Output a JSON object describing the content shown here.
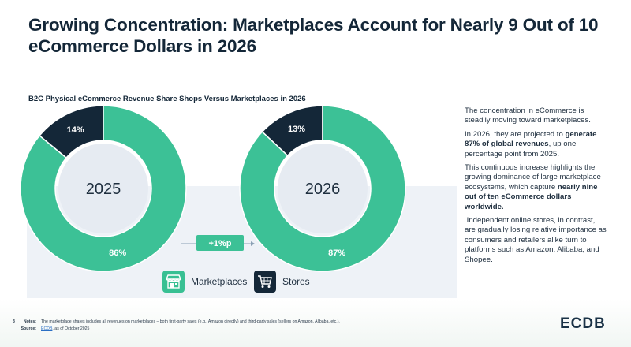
{
  "title_line1": "Growing Concentration: Marketplaces Account for Nearly 9 Out of 10",
  "title_line2": "eCommerce Dollars in 2026",
  "chart_data": {
    "type": "pie",
    "title": "B2C Physical eCommerce Revenue Share Shops Versus Marketplaces in 2026",
    "charts": [
      {
        "center_label": "2025",
        "slices": [
          {
            "name": "Marketplaces",
            "value": 86,
            "label": "86%",
            "color": "#3cc196"
          },
          {
            "name": "Stores",
            "value": 14,
            "label": "14%",
            "color": "#142738"
          }
        ]
      },
      {
        "center_label": "2026",
        "slices": [
          {
            "name": "Marketplaces",
            "value": 87,
            "label": "87%",
            "color": "#3cc196"
          },
          {
            "name": "Stores",
            "value": 13,
            "label": "13%",
            "color": "#142738"
          }
        ]
      }
    ],
    "change_label": "+1%p",
    "legend": [
      {
        "name": "Marketplaces",
        "icon": "storefront-icon",
        "color": "#38c093"
      },
      {
        "name": "Stores",
        "icon": "shopping-cart-icon",
        "color": "#142738"
      }
    ]
  },
  "sidebar": {
    "p1": "The concentration in eCommerce is steadily moving toward marketplaces.",
    "p2_a": "In 2026, they are projected to ",
    "p2_b": "generate 87% of global revenues",
    "p2_c": ", up one percentage point from 2025.",
    "p3_a": "This continuous increase highlights the growing dominance of large marketplace ecosystems, which capture ",
    "p3_b": "nearly nine out of ten eCommerce dollars worldwide.",
    "p4": " Independent online stores, in contrast, are gradually losing relative importance as consumers and retailers alike turn to platforms such as Amazon, Alibaba, and Shopee."
  },
  "notes": {
    "marker": "3",
    "notes_label": "Notes:",
    "notes_text": "The marketplace shares includes all revenues on marketplaces – both first-party sales (e.g., Amazon directly) and third-party sales (sellers on Amazon, Alibaba, etc.).",
    "source_label": "Source:",
    "source_link": "ECDB",
    "source_text": ", as of October 2025"
  },
  "logo": "ECDB"
}
